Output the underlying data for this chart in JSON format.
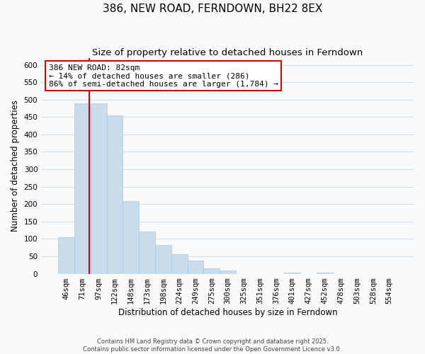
{
  "title": "386, NEW ROAD, FERNDOWN, BH22 8EX",
  "subtitle": "Size of property relative to detached houses in Ferndown",
  "xlabel": "Distribution of detached houses by size in Ferndown",
  "ylabel": "Number of detached properties",
  "bar_color": "#c8dcec",
  "bar_edge_color": "#b0c8dc",
  "categories": [
    "46sqm",
    "71sqm",
    "97sqm",
    "122sqm",
    "148sqm",
    "173sqm",
    "198sqm",
    "224sqm",
    "249sqm",
    "275sqm",
    "300sqm",
    "325sqm",
    "351sqm",
    "376sqm",
    "401sqm",
    "427sqm",
    "452sqm",
    "478sqm",
    "503sqm",
    "528sqm",
    "554sqm"
  ],
  "values": [
    105,
    490,
    490,
    455,
    208,
    122,
    82,
    57,
    37,
    15,
    10,
    0,
    0,
    0,
    4,
    0,
    4,
    0,
    0,
    0,
    0
  ],
  "ylim": [
    0,
    620
  ],
  "yticks": [
    0,
    50,
    100,
    150,
    200,
    250,
    300,
    350,
    400,
    450,
    500,
    550,
    600
  ],
  "annotation_line1": "386 NEW ROAD: 82sqm",
  "annotation_line2": "← 14% of detached houses are smaller (286)",
  "annotation_line3": "86% of semi-detached houses are larger (1,784) →",
  "annotation_box_color": "#ffffff",
  "annotation_box_edge": "#cc0000",
  "redline_color": "#cc0000",
  "grid_color": "#d4dce8",
  "background_color": "#f8fafc",
  "footer_line1": "Contains HM Land Registry data © Crown copyright and database right 2025.",
  "footer_line2": "Contains public sector information licensed under the Open Government Licence v3.0.",
  "title_fontsize": 11,
  "subtitle_fontsize": 9.5,
  "axis_label_fontsize": 8.5,
  "tick_fontsize": 7.5,
  "annotation_fontsize": 8
}
